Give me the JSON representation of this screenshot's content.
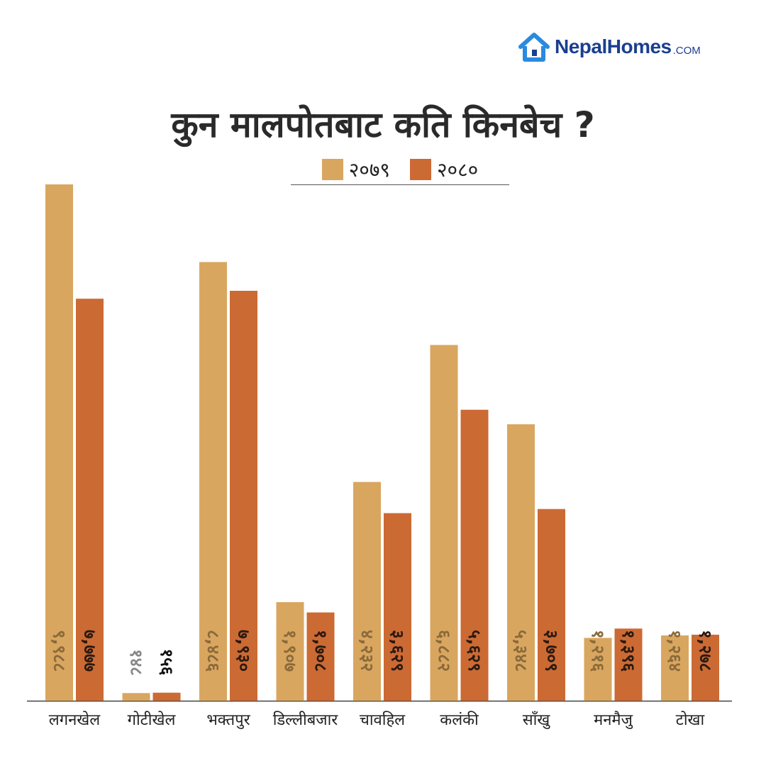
{
  "brand": {
    "logo_icon": "house-icon",
    "name": "NepalHomes",
    "suffix": ".COM",
    "color": "#1a3f8f",
    "accent": "#2a8ae0"
  },
  "chart_data": {
    "type": "bar",
    "title": "कुन मालपोतबाट कति किनबेच ?",
    "xlabel": "",
    "ylabel": "",
    "ylim": [
      0,
      10000
    ],
    "grid": false,
    "legend_position": "top-center",
    "categories": [
      "लगनखेल",
      "गोटीखेल",
      "भक्तपुर",
      "डिल्लीबजार",
      "चावहिल",
      "कलंकी",
      "साँखु",
      "मनमैजु",
      "टोखा"
    ],
    "series": [
      {
        "name": "२०७९",
        "color": "#d9a660",
        "values": [
          9988,
          148,
          8486,
          1907,
          4232,
          6882,
          5348,
          1216,
          1264
        ],
        "labels": [
          "९,९८८",
          "१४८",
          "८,४८६",
          "१,९०७",
          "४,२३२",
          "६,८८२",
          "५,३४८",
          "१,२१६",
          "१,२६४"
        ]
      },
      {
        "name": "२०८०",
        "color": "#cc6a34",
        "values": [
          7777,
          156,
          7930,
          1708,
          3629,
          5629,
          3709,
          1396,
          1278
        ],
        "labels": [
          "७,७७७",
          "१५६",
          "७,९३०",
          "१,७०८",
          "३,६२९",
          "५,६२९",
          "३,७०९",
          "१,३९६",
          "१,२७८"
        ]
      }
    ]
  }
}
